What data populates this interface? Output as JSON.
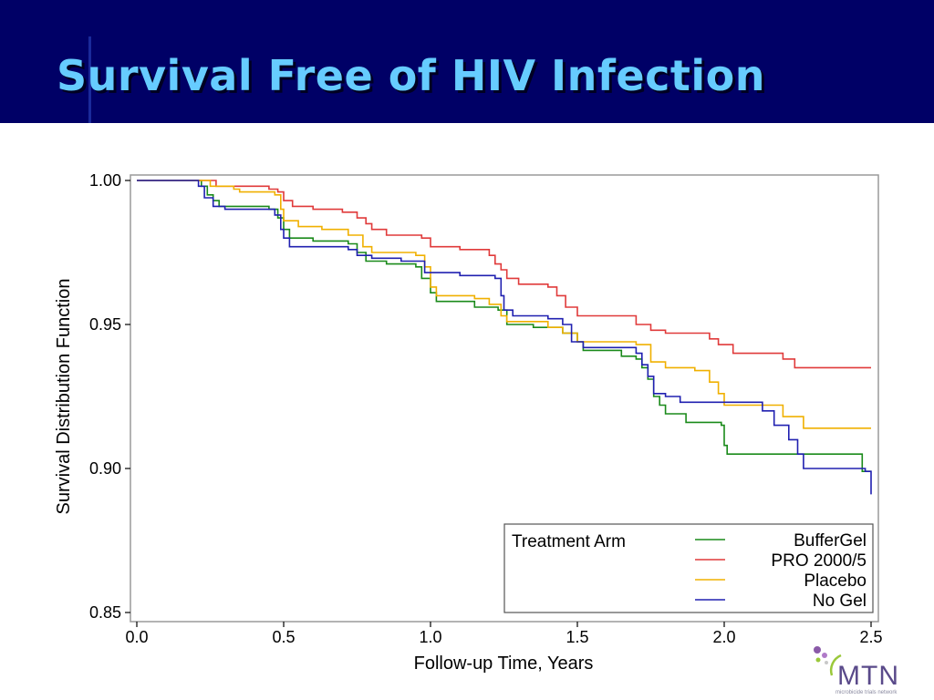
{
  "slide": {
    "title": "Survival Free of HIV Infection"
  },
  "logo": {
    "icon": "mtn-dots-logo",
    "text": "MTN",
    "subtext": "microbicide trials network"
  },
  "chart_data": {
    "type": "line",
    "step": true,
    "xlabel": "Follow-up Time, Years",
    "ylabel": "Survival Distribution Function",
    "xlim": [
      0,
      2.5
    ],
    "ylim": [
      0.85,
      1.0
    ],
    "xticks": [
      "0.0",
      "0.5",
      "1.0",
      "1.5",
      "2.0",
      "2.5"
    ],
    "yticks": [
      "0.85",
      "0.90",
      "0.95",
      "1.00"
    ],
    "grid": false,
    "legend": {
      "title": "Treatment Arm",
      "placement": "bottom-right"
    },
    "series": [
      {
        "name": "BufferGel",
        "color": "#1a8a1a",
        "points": [
          [
            0.0,
            1.0
          ],
          [
            0.19,
            1.0
          ],
          [
            0.22,
            0.998
          ],
          [
            0.24,
            0.995
          ],
          [
            0.26,
            0.993
          ],
          [
            0.28,
            0.991
          ],
          [
            0.45,
            0.99
          ],
          [
            0.48,
            0.987
          ],
          [
            0.5,
            0.983
          ],
          [
            0.52,
            0.98
          ],
          [
            0.6,
            0.979
          ],
          [
            0.72,
            0.978
          ],
          [
            0.75,
            0.975
          ],
          [
            0.78,
            0.972
          ],
          [
            0.85,
            0.971
          ],
          [
            0.95,
            0.97
          ],
          [
            0.97,
            0.966
          ],
          [
            1.0,
            0.961
          ],
          [
            1.02,
            0.958
          ],
          [
            1.15,
            0.956
          ],
          [
            1.23,
            0.955
          ],
          [
            1.26,
            0.95
          ],
          [
            1.35,
            0.949
          ],
          [
            1.45,
            0.947
          ],
          [
            1.5,
            0.944
          ],
          [
            1.52,
            0.941
          ],
          [
            1.65,
            0.939
          ],
          [
            1.7,
            0.938
          ],
          [
            1.72,
            0.935
          ],
          [
            1.74,
            0.931
          ],
          [
            1.76,
            0.925
          ],
          [
            1.78,
            0.922
          ],
          [
            1.8,
            0.919
          ],
          [
            1.87,
            0.916
          ],
          [
            1.99,
            0.915
          ],
          [
            2.0,
            0.908
          ],
          [
            2.01,
            0.905
          ],
          [
            2.2,
            0.905
          ],
          [
            2.45,
            0.905
          ],
          [
            2.47,
            0.899
          ],
          [
            2.5,
            0.899
          ]
        ]
      },
      {
        "name": "PRO 2000/5",
        "color": "#e03a3a",
        "points": [
          [
            0.0,
            1.0
          ],
          [
            0.25,
            1.0
          ],
          [
            0.27,
            0.998
          ],
          [
            0.45,
            0.997
          ],
          [
            0.48,
            0.996
          ],
          [
            0.5,
            0.993
          ],
          [
            0.53,
            0.991
          ],
          [
            0.6,
            0.99
          ],
          [
            0.7,
            0.989
          ],
          [
            0.75,
            0.987
          ],
          [
            0.78,
            0.985
          ],
          [
            0.8,
            0.983
          ],
          [
            0.85,
            0.981
          ],
          [
            0.97,
            0.98
          ],
          [
            1.0,
            0.977
          ],
          [
            1.1,
            0.976
          ],
          [
            1.2,
            0.974
          ],
          [
            1.22,
            0.971
          ],
          [
            1.24,
            0.969
          ],
          [
            1.26,
            0.966
          ],
          [
            1.3,
            0.964
          ],
          [
            1.4,
            0.963
          ],
          [
            1.43,
            0.96
          ],
          [
            1.46,
            0.956
          ],
          [
            1.5,
            0.953
          ],
          [
            1.7,
            0.95
          ],
          [
            1.75,
            0.948
          ],
          [
            1.8,
            0.947
          ],
          [
            1.95,
            0.945
          ],
          [
            1.98,
            0.943
          ],
          [
            2.03,
            0.94
          ],
          [
            2.2,
            0.938
          ],
          [
            2.24,
            0.935
          ],
          [
            2.5,
            0.935
          ]
        ]
      },
      {
        "name": "Placebo",
        "color": "#f0b000",
        "points": [
          [
            0.0,
            1.0
          ],
          [
            0.24,
            1.0
          ],
          [
            0.25,
            0.998
          ],
          [
            0.33,
            0.997
          ],
          [
            0.35,
            0.996
          ],
          [
            0.47,
            0.995
          ],
          [
            0.49,
            0.99
          ],
          [
            0.5,
            0.986
          ],
          [
            0.55,
            0.984
          ],
          [
            0.63,
            0.983
          ],
          [
            0.72,
            0.981
          ],
          [
            0.77,
            0.977
          ],
          [
            0.8,
            0.975
          ],
          [
            0.95,
            0.974
          ],
          [
            0.98,
            0.97
          ],
          [
            1.0,
            0.963
          ],
          [
            1.02,
            0.96
          ],
          [
            1.15,
            0.959
          ],
          [
            1.2,
            0.957
          ],
          [
            1.24,
            0.953
          ],
          [
            1.26,
            0.951
          ],
          [
            1.4,
            0.949
          ],
          [
            1.45,
            0.947
          ],
          [
            1.5,
            0.944
          ],
          [
            1.7,
            0.943
          ],
          [
            1.75,
            0.937
          ],
          [
            1.8,
            0.935
          ],
          [
            1.9,
            0.934
          ],
          [
            1.95,
            0.93
          ],
          [
            1.98,
            0.926
          ],
          [
            2.0,
            0.922
          ],
          [
            2.1,
            0.922
          ],
          [
            2.2,
            0.918
          ],
          [
            2.27,
            0.914
          ],
          [
            2.5,
            0.914
          ]
        ]
      },
      {
        "name": "No Gel",
        "color": "#2020b0",
        "points": [
          [
            0.0,
            1.0
          ],
          [
            0.19,
            1.0
          ],
          [
            0.21,
            0.998
          ],
          [
            0.23,
            0.994
          ],
          [
            0.26,
            0.991
          ],
          [
            0.3,
            0.99
          ],
          [
            0.47,
            0.988
          ],
          [
            0.49,
            0.983
          ],
          [
            0.5,
            0.98
          ],
          [
            0.52,
            0.977
          ],
          [
            0.68,
            0.977
          ],
          [
            0.72,
            0.976
          ],
          [
            0.75,
            0.974
          ],
          [
            0.8,
            0.973
          ],
          [
            0.9,
            0.972
          ],
          [
            0.97,
            0.972
          ],
          [
            0.98,
            0.968
          ],
          [
            1.1,
            0.967
          ],
          [
            1.22,
            0.966
          ],
          [
            1.24,
            0.96
          ],
          [
            1.25,
            0.955
          ],
          [
            1.28,
            0.953
          ],
          [
            1.4,
            0.952
          ],
          [
            1.45,
            0.95
          ],
          [
            1.48,
            0.944
          ],
          [
            1.52,
            0.942
          ],
          [
            1.7,
            0.94
          ],
          [
            1.72,
            0.936
          ],
          [
            1.74,
            0.932
          ],
          [
            1.76,
            0.926
          ],
          [
            1.8,
            0.925
          ],
          [
            1.85,
            0.923
          ],
          [
            2.05,
            0.923
          ],
          [
            2.13,
            0.92
          ],
          [
            2.17,
            0.915
          ],
          [
            2.22,
            0.91
          ],
          [
            2.25,
            0.905
          ],
          [
            2.27,
            0.9
          ],
          [
            2.45,
            0.9
          ],
          [
            2.48,
            0.899
          ],
          [
            2.5,
            0.891
          ]
        ]
      }
    ]
  }
}
